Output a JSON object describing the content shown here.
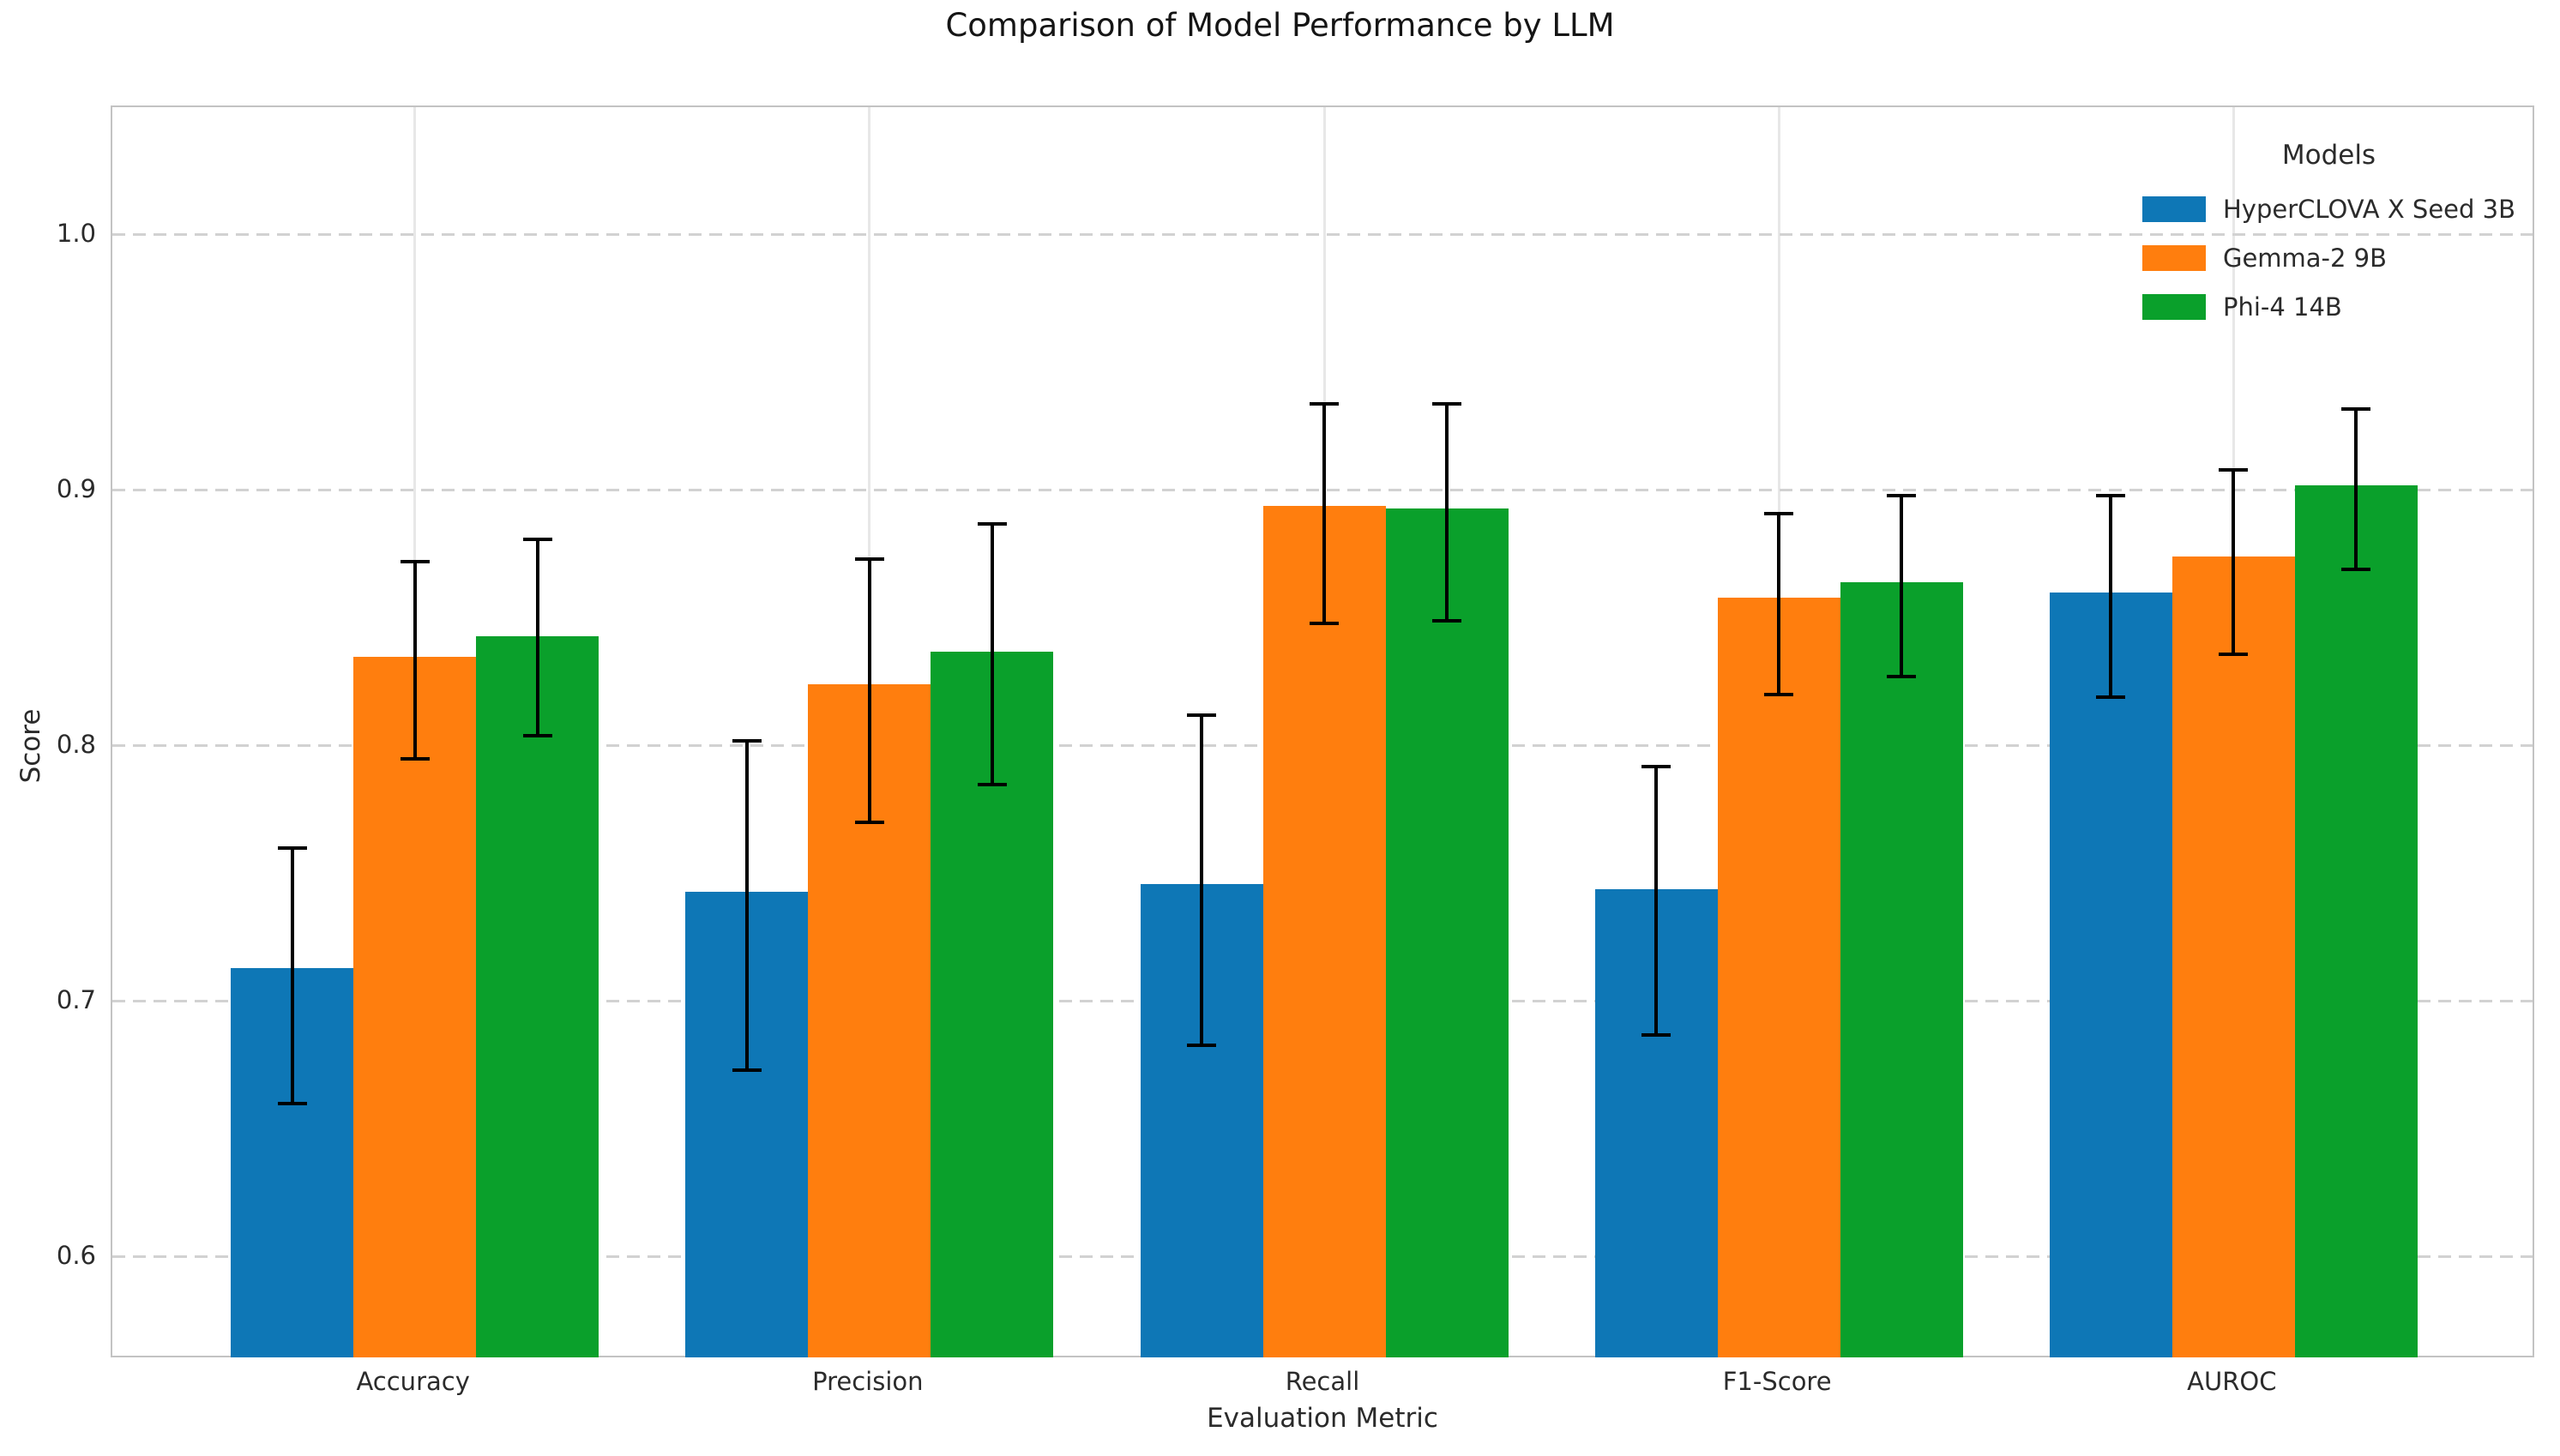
{
  "chart_data": {
    "type": "bar",
    "title": "Comparison of Model Performance by LLM",
    "xlabel": "Evaluation Metric",
    "ylabel": "Score",
    "categories": [
      "Accuracy",
      "Precision",
      "Recall",
      "F1-Score",
      "AUROC"
    ],
    "ytick_labels": [
      "0.6",
      "0.7",
      "0.8",
      "0.9",
      "1.0"
    ],
    "yticks": [
      0.6,
      0.7,
      0.8,
      0.9,
      1.0
    ],
    "ylim": [
      0.56,
      1.05
    ],
    "grid": {
      "horizontal": "dashed",
      "vertical": "solid",
      "on": true
    },
    "legend": {
      "title": "Models",
      "position": "upper-right",
      "frame": false
    },
    "series": [
      {
        "name": "HyperCLOVA X Seed 3B",
        "color": "#0e77b6",
        "values": [
          0.713,
          0.743,
          0.746,
          0.744,
          0.86
        ],
        "error_low": [
          0.66,
          0.673,
          0.683,
          0.687,
          0.819
        ],
        "error_high": [
          0.76,
          0.802,
          0.812,
          0.792,
          0.898
        ]
      },
      {
        "name": "Gemma-2 9B",
        "color": "#ff7e0e",
        "values": [
          0.835,
          0.824,
          0.894,
          0.858,
          0.874
        ],
        "error_low": [
          0.795,
          0.77,
          0.848,
          0.82,
          0.836
        ],
        "error_high": [
          0.872,
          0.873,
          0.934,
          0.891,
          0.908
        ]
      },
      {
        "name": "Phi-4 14B",
        "color": "#0aa02b",
        "values": [
          0.843,
          0.837,
          0.893,
          0.864,
          0.902
        ],
        "error_low": [
          0.804,
          0.785,
          0.849,
          0.827,
          0.869
        ],
        "error_high": [
          0.881,
          0.887,
          0.934,
          0.898,
          0.932
        ]
      }
    ],
    "error_bar": {
      "color": "#000000",
      "line_width": 4,
      "cap_width": 34,
      "cap_thickness": 4
    }
  },
  "style": {
    "spine_color": "#c3c3c3",
    "hgrid_color": "#d2d2d2",
    "vgrid_color": "#e7e7e7",
    "text_color": "#2b2b2b",
    "background": "#ffffff"
  }
}
